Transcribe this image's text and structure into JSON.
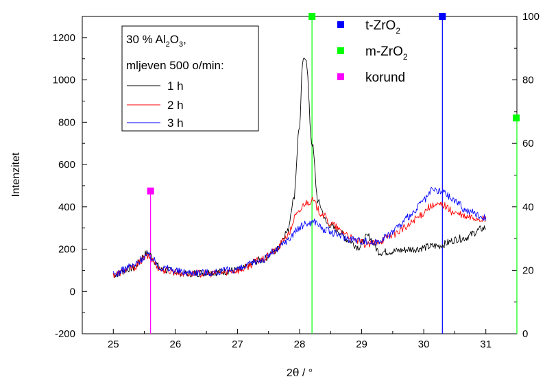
{
  "chart_data": {
    "type": "line",
    "xlabel_main": "2",
    "xlabel_greek": "θ",
    "xlabel_unit": " / °",
    "ylabel": "Intenzitet",
    "xlim": [
      24.5,
      31.5
    ],
    "ylim": [
      -200,
      1300
    ],
    "y2lim": [
      0,
      100
    ],
    "xticks": [
      "25",
      "26",
      "27",
      "28",
      "29",
      "30",
      "31"
    ],
    "yticks": [
      "-200",
      "0",
      "200",
      "400",
      "600",
      "800",
      "1000",
      "1200"
    ],
    "y2ticks": [
      "0",
      "20",
      "40",
      "60",
      "80",
      "100"
    ],
    "legend": {
      "line1": "30 % Al",
      "sub1": "2",
      "mid1": "O",
      "sub2": "3",
      "end1": ",",
      "line2": "mljeven 500 o/min:",
      "entries": [
        "1 h",
        "2 h",
        "3 h"
      ]
    },
    "series": [
      {
        "name": "1 h",
        "color": "#000000",
        "x": [
          25.0,
          25.3,
          25.55,
          25.8,
          26.2,
          26.6,
          27.0,
          27.4,
          27.6,
          27.8,
          27.9,
          28.0,
          28.05,
          28.1,
          28.2,
          28.3,
          28.45,
          28.6,
          28.8,
          28.95,
          29.1,
          29.3,
          29.5,
          29.8,
          30.2,
          30.6,
          31.0
        ],
        "y": [
          80,
          110,
          180,
          100,
          85,
          90,
          100,
          150,
          190,
          280,
          430,
          780,
          1080,
          1110,
          700,
          420,
          320,
          290,
          240,
          210,
          260,
          185,
          190,
          200,
          215,
          250,
          300
        ]
      },
      {
        "name": "2 h",
        "color": "#ff0000",
        "x": [
          25.0,
          25.3,
          25.55,
          25.8,
          26.2,
          26.6,
          27.0,
          27.4,
          27.6,
          27.8,
          27.95,
          28.1,
          28.2,
          28.35,
          28.5,
          28.7,
          28.9,
          29.1,
          29.3,
          29.5,
          29.7,
          29.9,
          30.1,
          30.3,
          30.5,
          30.7,
          31.0
        ],
        "y": [
          80,
          110,
          165,
          100,
          85,
          85,
          100,
          150,
          190,
          260,
          360,
          420,
          430,
          370,
          320,
          280,
          240,
          220,
          240,
          270,
          300,
          350,
          400,
          410,
          370,
          350,
          340
        ]
      },
      {
        "name": "3 h",
        "color": "#0000ff",
        "x": [
          25.0,
          25.3,
          25.55,
          25.8,
          26.2,
          26.6,
          27.0,
          27.4,
          27.6,
          27.8,
          27.95,
          28.1,
          28.25,
          28.4,
          28.6,
          28.8,
          29.0,
          29.2,
          29.4,
          29.6,
          29.8,
          30.0,
          30.15,
          30.3,
          30.5,
          30.7,
          31.0
        ],
        "y": [
          80,
          120,
          170,
          110,
          90,
          90,
          105,
          150,
          190,
          240,
          290,
          320,
          330,
          290,
          270,
          250,
          240,
          230,
          260,
          310,
          360,
          430,
          480,
          470,
          430,
          380,
          350
        ]
      }
    ],
    "references": [
      {
        "name": "korund",
        "color": "#ff00ff",
        "x": 25.6,
        "height": 45
      },
      {
        "name": "m-ZrO2",
        "color": "#00ff00",
        "x": 28.2,
        "height": 100
      },
      {
        "name": "t-ZrO2",
        "color": "#0000ff",
        "x": 30.3,
        "height": 100
      }
    ],
    "ref_legend": [
      {
        "label": "t-ZrO",
        "sub": "2",
        "color": "#0000ff"
      },
      {
        "label": "m-ZrO",
        "sub": "2",
        "color": "#00ff00"
      },
      {
        "label": "korund",
        "sub": "",
        "color": "#ff00ff"
      }
    ]
  }
}
